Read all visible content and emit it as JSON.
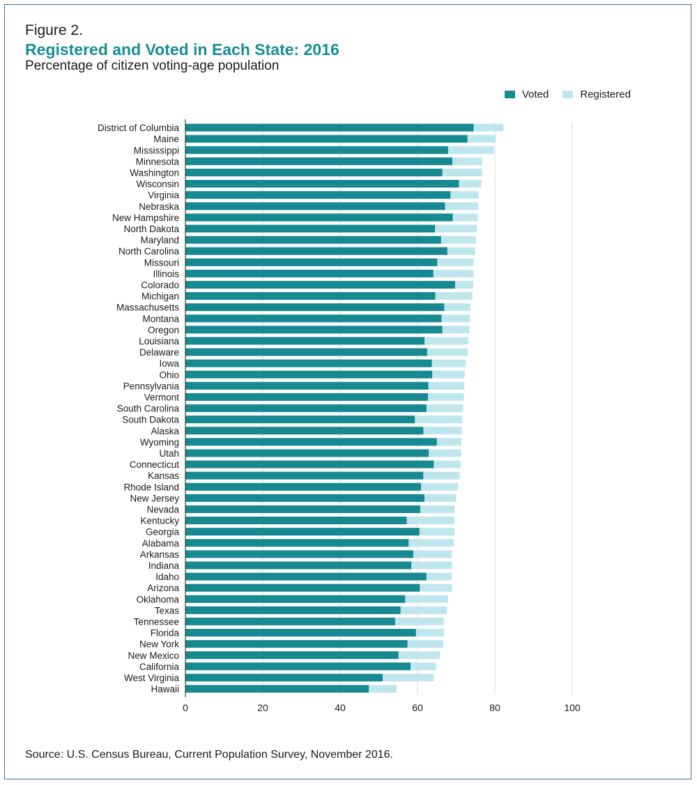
{
  "figure_label": "Figure 2.",
  "source": "Source: U.S. Census Bureau, Current Population Survey, November 2016.",
  "colors": {
    "voted": "#178a91",
    "registered": "#bfe6ed",
    "title": "#178e93",
    "grid": "#d9d9d9",
    "frame": "#3d6aa6"
  },
  "chart_data": {
    "type": "bar",
    "orientation": "horizontal",
    "stacked": "overlay",
    "title": "Registered and Voted in Each State: 2016",
    "subtitle": "Percentage of citizen voting-age population",
    "xlim": [
      0,
      100
    ],
    "xticks": [
      0,
      20,
      40,
      60,
      80,
      100
    ],
    "grid": true,
    "legend_position": "top-right",
    "legend": [
      "Voted",
      "Registered"
    ],
    "categories": [
      "District of Columbia",
      "Maine",
      "Mississippi",
      "Minnesota",
      "Washington",
      "Wisconsin",
      "Virginia",
      "Nebraska",
      "New Hampshire",
      "North Dakota",
      "Maryland",
      "North Carolina",
      "Missouri",
      "Illinois",
      "Colorado",
      "Michigan",
      "Massachusetts",
      "Montana",
      "Oregon",
      "Louisiana",
      "Delaware",
      "Iowa",
      "Ohio",
      "Pennsylvania",
      "Vermont",
      "South Carolina",
      "South Dakota",
      "Alaska",
      "Wyoming",
      "Utah",
      "Connecticut",
      "Kansas",
      "Rhode Island",
      "New Jersey",
      "Nevada",
      "Kentucky",
      "Georgia",
      "Alabama",
      "Arkansas",
      "Indiana",
      "Idaho",
      "Arizona",
      "Oklahoma",
      "Texas",
      "Tennessee",
      "Florida",
      "New York",
      "New Mexico",
      "California",
      "West Virginia",
      "Hawaii"
    ],
    "series": [
      {
        "name": "Voted",
        "values": [
          74.5,
          72.9,
          67.9,
          69.0,
          66.4,
          70.7,
          68.5,
          67.1,
          69.1,
          64.5,
          66.1,
          67.7,
          65.1,
          64.1,
          69.7,
          64.6,
          66.9,
          66.2,
          66.4,
          61.8,
          62.5,
          63.7,
          63.8,
          62.8,
          62.7,
          62.3,
          59.3,
          61.5,
          65.0,
          62.9,
          64.2,
          61.5,
          60.9,
          61.8,
          60.7,
          57.2,
          60.5,
          57.7,
          58.9,
          58.4,
          62.3,
          60.6,
          56.8,
          55.6,
          54.2,
          59.6,
          57.4,
          55.1,
          58.2,
          51.0,
          47.4
        ]
      },
      {
        "name": "Registered",
        "values": [
          82.2,
          80.2,
          79.7,
          76.7,
          76.7,
          76.5,
          75.8,
          75.7,
          75.6,
          75.4,
          75.1,
          74.9,
          74.5,
          74.5,
          74.4,
          74.2,
          73.7,
          73.6,
          73.4,
          73.1,
          73.0,
          72.5,
          72.2,
          72.1,
          72.0,
          71.8,
          71.6,
          71.5,
          71.3,
          71.3,
          71.2,
          70.9,
          70.5,
          70.0,
          69.6,
          69.5,
          69.6,
          69.4,
          68.9,
          68.9,
          68.9,
          68.9,
          67.9,
          67.6,
          66.8,
          66.8,
          66.7,
          65.8,
          64.8,
          64.2,
          54.6
        ]
      }
    ]
  }
}
